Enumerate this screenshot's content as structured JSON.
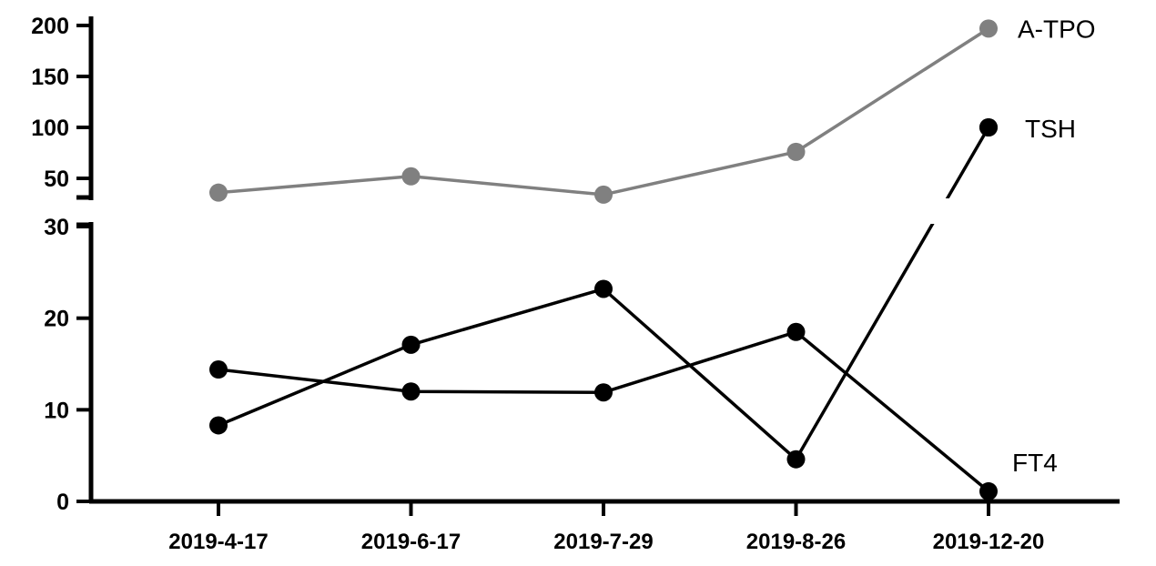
{
  "chart_data": {
    "type": "line",
    "title": "",
    "xlabel": "",
    "ylabel": "",
    "categories": [
      "2019-4-17",
      "2019-6-17",
      "2019-7-29",
      "2019-8-26",
      "2019-12-20"
    ],
    "y_axis_break": true,
    "y_lower": {
      "range": [
        0,
        30
      ],
      "ticks": [
        0,
        10,
        20,
        30
      ]
    },
    "y_upper": {
      "range": [
        30,
        200
      ],
      "ticks": [
        50,
        100,
        150,
        200
      ]
    },
    "grid": false,
    "legend": "inline labels at right end of series",
    "series": [
      {
        "name": "A-TPO",
        "color": "#808080",
        "values": [
          36,
          52,
          34,
          76,
          197
        ]
      },
      {
        "name": "TSH",
        "color": "#000000",
        "values": [
          8.3,
          17.1,
          23.2,
          4.6,
          100
        ]
      },
      {
        "name": "FT4",
        "color": "#000000",
        "values": [
          14.4,
          12.0,
          11.9,
          18.5,
          1.1
        ]
      }
    ]
  }
}
